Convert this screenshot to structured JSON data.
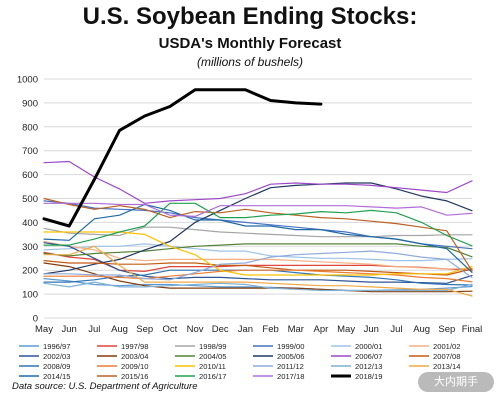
{
  "header": {
    "title": "U.S. Soybean Ending Stocks:",
    "subtitle": "USDA's Monthly Forecast",
    "units": "(millions of bushels)"
  },
  "footer": {
    "source": "Data source: U.S. Department of Agriculture",
    "watermark": "大内期手"
  },
  "chart_data": {
    "type": "line",
    "title": "U.S. Soybean Ending Stocks:",
    "subtitle": "USDA's Monthly Forecast",
    "ylabel": "(millions of bushels)",
    "xlabel": "",
    "categories": [
      "May",
      "Jun",
      "Jul",
      "Aug",
      "Sep",
      "Oct",
      "Nov",
      "Dec",
      "Jan",
      "Feb",
      "Mar",
      "Apr",
      "May",
      "Jun",
      "Jul",
      "Aug",
      "Sep",
      "Final"
    ],
    "ylim": [
      0,
      1000
    ],
    "yticks": [
      0,
      100,
      200,
      300,
      400,
      500,
      600,
      700,
      800,
      900,
      1000
    ],
    "grid": true,
    "legend_position": "bottom",
    "series": [
      {
        "name": "1996/97",
        "color": "#5b9bd5",
        "width": 1.2,
        "values": [
          165,
          155,
          140,
          135,
          140,
          140,
          135,
          130,
          130,
          128,
          125,
          120,
          115,
          115,
          118,
          120,
          125,
          132
        ]
      },
      {
        "name": "1997/98",
        "color": "#e0453a",
        "width": 1.2,
        "values": [
          275,
          255,
          245,
          200,
          195,
          215,
          215,
          215,
          220,
          220,
          220,
          220,
          220,
          220,
          215,
          212,
          205,
          200
        ]
      },
      {
        "name": "1998/99",
        "color": "#a5a5a5",
        "width": 1.2,
        "values": [
          375,
          355,
          350,
          345,
          380,
          380,
          370,
          360,
          355,
          350,
          345,
          340,
          340,
          340,
          345,
          345,
          348,
          348
        ]
      },
      {
        "name": "1999/00",
        "color": "#4472c4",
        "width": 1.2,
        "values": [
          490,
          480,
          460,
          455,
          450,
          440,
          420,
          410,
          400,
          390,
          380,
          370,
          360,
          340,
          330,
          310,
          300,
          290
        ]
      },
      {
        "name": "2000/01",
        "color": "#9dc3e6",
        "width": 1.2,
        "values": [
          285,
          290,
          300,
          300,
          310,
          300,
          290,
          280,
          280,
          260,
          255,
          250,
          250,
          245,
          240,
          240,
          245,
          248
        ]
      },
      {
        "name": "2001/02",
        "color": "#f4b183",
        "width": 1.2,
        "values": [
          320,
          300,
          285,
          250,
          240,
          245,
          245,
          245,
          245,
          245,
          240,
          235,
          230,
          225,
          215,
          210,
          205,
          208
        ]
      },
      {
        "name": "2002/03",
        "color": "#2e5597",
        "width": 1.2,
        "values": [
          315,
          300,
          250,
          200,
          175,
          165,
          170,
          170,
          165,
          160,
          160,
          160,
          155,
          150,
          150,
          148,
          145,
          178
        ]
      },
      {
        "name": "2003/04",
        "color": "#843c0c",
        "width": 1.2,
        "values": [
          230,
          215,
          185,
          155,
          135,
          125,
          125,
          125,
          125,
          125,
          125,
          120,
          115,
          110,
          110,
          110,
          110,
          112
        ]
      },
      {
        "name": "2004/05",
        "color": "#548235",
        "width": 1.2,
        "values": [
          270,
          260,
          270,
          275,
          280,
          290,
          300,
          305,
          310,
          310,
          310,
          310,
          310,
          310,
          310,
          300,
          295,
          256
        ]
      },
      {
        "name": "2005/06",
        "color": "#203864",
        "width": 1.2,
        "values": [
          185,
          200,
          225,
          245,
          285,
          320,
          400,
          450,
          500,
          545,
          555,
          560,
          565,
          565,
          540,
          510,
          490,
          449
        ]
      },
      {
        "name": "2006/07",
        "color": "#9e48c8",
        "width": 1.2,
        "values": [
          650,
          655,
          590,
          540,
          480,
          490,
          495,
          500,
          520,
          560,
          565,
          560,
          560,
          555,
          545,
          535,
          525,
          574
        ]
      },
      {
        "name": "2007/08",
        "color": "#c55a11",
        "width": 1.2,
        "values": [
          240,
          230,
          230,
          225,
          225,
          230,
          230,
          220,
          220,
          210,
          200,
          200,
          200,
          195,
          190,
          185,
          180,
          205
        ]
      },
      {
        "name": "2008/09",
        "color": "#2f75b5",
        "width": 1.2,
        "values": [
          150,
          150,
          160,
          175,
          180,
          200,
          200,
          200,
          200,
          200,
          190,
          180,
          175,
          170,
          160,
          145,
          140,
          138
        ]
      },
      {
        "name": "2009/10",
        "color": "#ed7d31",
        "width": 1.2,
        "values": [
          175,
          175,
          175,
          170,
          165,
          175,
          185,
          195,
          200,
          200,
          200,
          195,
          190,
          185,
          180,
          170,
          165,
          151
        ]
      },
      {
        "name": "2010/11",
        "color": "#ffc000",
        "width": 1.2,
        "values": [
          360,
          360,
          360,
          360,
          350,
          300,
          265,
          200,
          180,
          180,
          180,
          180,
          180,
          180,
          185,
          185,
          185,
          215
        ]
      },
      {
        "name": "2011/12",
        "color": "#8faadc",
        "width": 1.2,
        "values": [
          185,
          185,
          180,
          180,
          165,
          160,
          190,
          225,
          230,
          255,
          265,
          270,
          275,
          280,
          270,
          255,
          245,
          169
        ]
      },
      {
        "name": "2012/13",
        "color": "#7fb2d5",
        "width": 1.2,
        "values": [
          145,
          130,
          150,
          130,
          130,
          135,
          140,
          145,
          140,
          125,
          120,
          115,
          115,
          115,
          115,
          115,
          115,
          141
        ]
      },
      {
        "name": "2013/14",
        "color": "#f2a945",
        "width": 1.2,
        "values": [
          265,
          265,
          300,
          220,
          150,
          150,
          150,
          150,
          150,
          145,
          140,
          135,
          135,
          130,
          125,
          120,
          120,
          92
        ]
      },
      {
        "name": "2014/15",
        "color": "#1f6aa5",
        "width": 1.2,
        "values": [
          330,
          325,
          415,
          430,
          475,
          450,
          410,
          410,
          385,
          385,
          370,
          370,
          350,
          340,
          330,
          310,
          290,
          191
        ]
      },
      {
        "name": "2015/16",
        "color": "#bd6122",
        "width": 1.2,
        "values": [
          500,
          475,
          455,
          470,
          455,
          420,
          445,
          440,
          455,
          440,
          430,
          420,
          415,
          405,
          395,
          380,
          365,
          197
        ]
      },
      {
        "name": "2016/17",
        "color": "#20a04f",
        "width": 1.2,
        "values": [
          305,
          305,
          330,
          360,
          385,
          480,
          480,
          420,
          420,
          430,
          435,
          445,
          440,
          450,
          440,
          400,
          345,
          302
        ]
      },
      {
        "name": "2017/18",
        "color": "#b06cd9",
        "width": 1.2,
        "values": [
          480,
          480,
          480,
          475,
          475,
          430,
          425,
          470,
          470,
          470,
          470,
          470,
          470,
          465,
          460,
          465,
          430,
          438
        ]
      },
      {
        "name": "2018/19",
        "color": "#000000",
        "width": 3,
        "values": [
          415,
          385,
          580,
          785,
          845,
          885,
          955,
          955,
          955,
          910,
          900,
          895,
          null,
          null,
          null,
          null,
          null,
          null
        ]
      }
    ]
  }
}
